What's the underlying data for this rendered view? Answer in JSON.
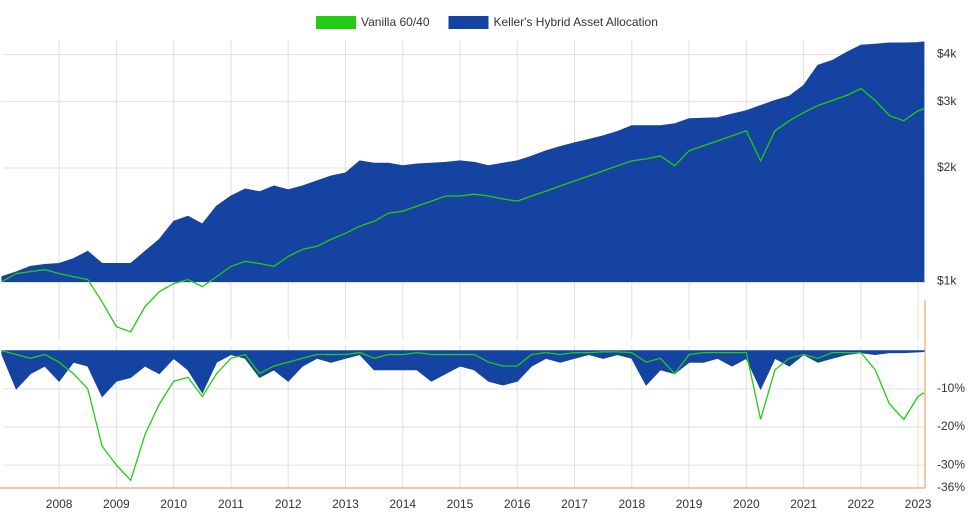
{
  "chart_data": [
    {
      "type": "area",
      "log_scale": true,
      "grid": true,
      "legend": "top",
      "x": [
        2007.0,
        2007.25,
        2007.5,
        2007.75,
        2008.0,
        2008.25,
        2008.5,
        2008.75,
        2009.0,
        2009.25,
        2009.5,
        2009.75,
        2010.0,
        2010.25,
        2010.5,
        2010.75,
        2011.0,
        2011.25,
        2011.5,
        2011.75,
        2012.0,
        2012.25,
        2012.5,
        2012.75,
        2013.0,
        2013.25,
        2013.5,
        2013.75,
        2014.0,
        2014.25,
        2014.5,
        2014.75,
        2015.0,
        2015.25,
        2015.5,
        2015.75,
        2016.0,
        2016.25,
        2016.5,
        2016.75,
        2017.0,
        2017.25,
        2017.5,
        2017.75,
        2018.0,
        2018.25,
        2018.5,
        2018.75,
        2019.0,
        2019.25,
        2019.5,
        2019.75,
        2020.0,
        2020.25,
        2020.5,
        2020.75,
        2021.0,
        2021.25,
        2021.5,
        2021.75,
        2022.0,
        2022.25,
        2022.5,
        2022.75,
        2023.0,
        2023.1
      ],
      "xlim": [
        2007.02,
        2023.12
      ],
      "ylim": [
        700,
        4370
      ],
      "yticks": [
        {
          "value": 1000,
          "label": "$1k"
        },
        {
          "value": 2000,
          "label": "$2k"
        },
        {
          "value": 3000,
          "label": "$3k"
        },
        {
          "value": 4000,
          "label": "$4k"
        }
      ],
      "series": [
        {
          "name": "Keller's Hybrid Asset Allocation",
          "color": "#1443a1",
          "style": "area",
          "values": [
            1031,
            1060,
            1097,
            1110,
            1117,
            1150,
            1202,
            1117,
            1117,
            1117,
            1202,
            1294,
            1445,
            1490,
            1420,
            1585,
            1686,
            1760,
            1730,
            1792,
            1750,
            1792,
            1848,
            1905,
            1940,
            2089,
            2060,
            2060,
            2027,
            2050,
            2060,
            2070,
            2089,
            2070,
            2027,
            2060,
            2089,
            2150,
            2222,
            2280,
            2333,
            2380,
            2435,
            2500,
            2589,
            2589,
            2589,
            2620,
            2703,
            2710,
            2720,
            2780,
            2839,
            2928,
            3020,
            3100,
            3310,
            3744,
            3856,
            4050,
            4230,
            4260,
            4290,
            4290,
            4300,
            4320
          ]
        },
        {
          "name": "Vanilla 60/40",
          "color": "#22cc11",
          "style": "line",
          "values": [
            1000,
            1050,
            1063,
            1076,
            1050,
            1031,
            1012,
            884,
            759,
            736,
            858,
            940,
            988,
            1012,
            970,
            1031,
            1097,
            1131,
            1117,
            1097,
            1166,
            1217,
            1240,
            1294,
            1343,
            1402,
            1445,
            1518,
            1537,
            1585,
            1634,
            1686,
            1686,
            1705,
            1686,
            1655,
            1634,
            1686,
            1737,
            1792,
            1848,
            1905,
            1965,
            2027,
            2089,
            2115,
            2153,
            2027,
            2222,
            2291,
            2361,
            2435,
            2511,
            2089,
            2511,
            2669,
            2805,
            2928,
            3020,
            3114,
            3251,
            3020,
            2755,
            2669,
            2839,
            2872
          ]
        }
      ]
    },
    {
      "type": "area",
      "grid": true,
      "x": [
        2007.0,
        2007.25,
        2007.5,
        2007.75,
        2008.0,
        2008.25,
        2008.5,
        2008.75,
        2009.0,
        2009.25,
        2009.5,
        2009.75,
        2010.0,
        2010.25,
        2010.5,
        2010.75,
        2011.0,
        2011.25,
        2011.5,
        2011.75,
        2012.0,
        2012.25,
        2012.5,
        2012.75,
        2013.0,
        2013.25,
        2013.5,
        2013.75,
        2014.0,
        2014.25,
        2014.5,
        2014.75,
        2015.0,
        2015.25,
        2015.5,
        2015.75,
        2016.0,
        2016.25,
        2016.5,
        2016.75,
        2017.0,
        2017.25,
        2017.5,
        2017.75,
        2018.0,
        2018.25,
        2018.5,
        2018.75,
        2019.0,
        2019.25,
        2019.5,
        2019.75,
        2020.0,
        2020.25,
        2020.5,
        2020.75,
        2021.0,
        2021.25,
        2021.5,
        2021.75,
        2022.0,
        2022.25,
        2022.5,
        2022.75,
        2023.0,
        2023.1
      ],
      "xlim": [
        2007.02,
        2023.12
      ],
      "xticks": [
        2008,
        2009,
        2010,
        2011,
        2012,
        2013,
        2014,
        2015,
        2016,
        2017,
        2018,
        2019,
        2020,
        2021,
        2022,
        2023
      ],
      "ylim": [
        -36,
        1.5
      ],
      "yticks": [
        {
          "value": -10,
          "label": "-10%"
        },
        {
          "value": -20,
          "label": "-20%"
        },
        {
          "value": -30,
          "label": "-30%"
        },
        {
          "value": -36,
          "label": "-36%"
        }
      ],
      "series": [
        {
          "color": "#1443a1",
          "style": "area",
          "values": [
            -1,
            -10,
            -6,
            -4,
            -8,
            -3,
            -4,
            -12,
            -8,
            -7,
            -4,
            -6,
            -2,
            -5,
            -11,
            -3,
            -1,
            -2,
            -7,
            -5,
            -8,
            -4,
            -2,
            -3,
            -2,
            -1,
            -5,
            -5,
            -5,
            -5,
            -8,
            -6,
            -4,
            -5,
            -8,
            -9,
            -8,
            -4,
            -2,
            -3,
            -2,
            -1,
            -2,
            -1,
            -2,
            -9,
            -5,
            -6,
            -3,
            -3,
            -2,
            -4,
            -2,
            -10,
            -2,
            -4,
            -1,
            -3,
            -2,
            -1,
            -0.5,
            -1,
            -0.5,
            -0.5,
            -0.3,
            -0.2
          ]
        },
        {
          "color": "#22cc11",
          "style": "line",
          "values": [
            0,
            -1,
            -2,
            -1,
            -3,
            -6,
            -10,
            -25,
            -30,
            -34,
            -22,
            -14,
            -8,
            -7,
            -12,
            -6,
            -2,
            -1,
            -6,
            -4,
            -3,
            -2,
            -1,
            -1,
            -1,
            -0.5,
            -2,
            -1,
            -1,
            -0.5,
            -1,
            -1,
            -1,
            -1,
            -3,
            -4,
            -4,
            -1,
            -0.5,
            -1,
            -0.5,
            -0.5,
            -0.3,
            -0.3,
            -0.5,
            -3,
            -2,
            -6,
            -1,
            -0.5,
            -0.5,
            -0.5,
            -0.5,
            -18,
            -5,
            -2,
            -1,
            -2,
            -0.5,
            -0.5,
            -0.5,
            -5,
            -14,
            -18,
            -12,
            -11
          ]
        }
      ]
    }
  ]
}
